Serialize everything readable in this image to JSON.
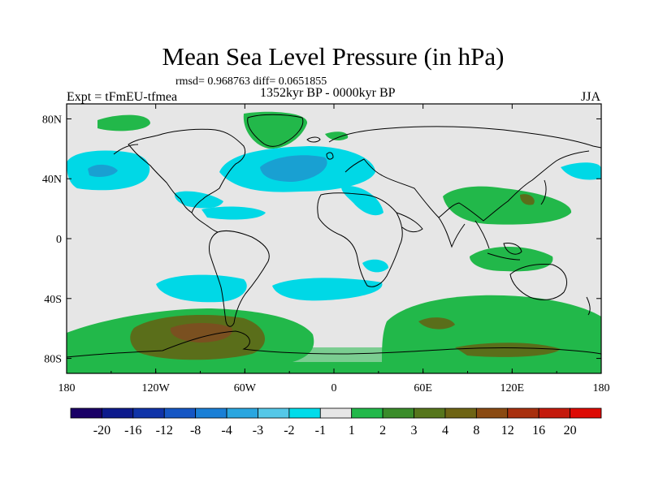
{
  "title": "Mean Sea Level Pressure (in hPa)",
  "stats": "rmsd= 0.968763 diff= 0.0651855",
  "experiment": "Expt = tFmEU-tfmea",
  "period": "1352kyr BP - 0000kyr BP",
  "season": "JJA",
  "axes": {
    "x_ticks": [
      "180",
      "120W",
      "60W",
      "0",
      "60E",
      "120E",
      "180"
    ],
    "y_ticks": [
      "80N",
      "40N",
      "0",
      "40S",
      "80S"
    ]
  },
  "colorbar": {
    "labels": [
      "-20",
      "-16",
      "-12",
      "-8",
      "-4",
      "-3",
      "-2",
      "-1",
      "1",
      "2",
      "3",
      "4",
      "8",
      "12",
      "16",
      "20"
    ],
    "colors": [
      "#1a0066",
      "#0d1a8c",
      "#0f33a8",
      "#1556c4",
      "#1a7fd6",
      "#2aa6e0",
      "#55c8e8",
      "#00dcea",
      "#e6e6e6",
      "#22b84a",
      "#3a8c2a",
      "#56761c",
      "#6e6414",
      "#8a4a12",
      "#a8300e",
      "#c41a0c",
      "#dd0a04"
    ]
  },
  "colors": {
    "neutral": "#e6e6e6",
    "cyan": "#00d8e6",
    "blue": "#19a0d2",
    "green": "#22b84a",
    "olive": "#5a6e1a",
    "brown": "#7a5020"
  }
}
